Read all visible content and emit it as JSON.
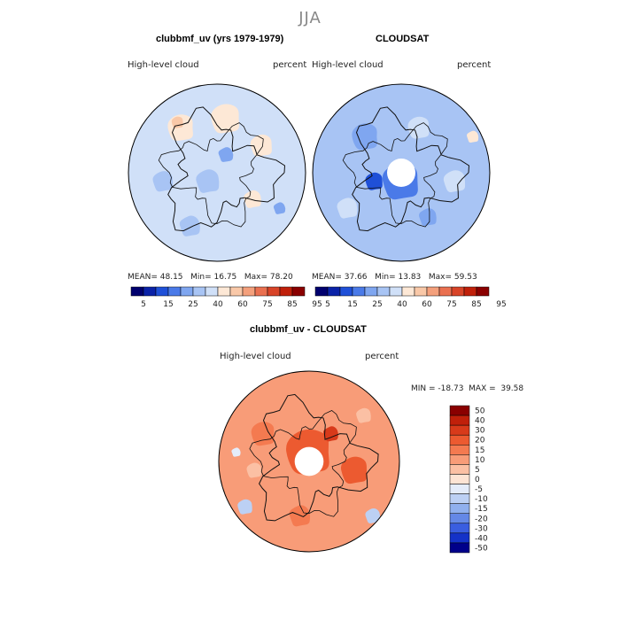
{
  "main_title": "JJA",
  "panels": [
    {
      "title": "clubbmf_uv (yrs 1979-1979)",
      "left_label": "High-level cloud",
      "right_label": "percent",
      "stats": {
        "mean_label": "MEAN=",
        "mean": "48.15",
        "min_label": "Min=",
        "min": "16.75",
        "max_label": "Max=",
        "max": "78.20"
      }
    },
    {
      "title": "CLOUDSAT",
      "left_label": "High-level cloud",
      "right_label": "percent",
      "stats": {
        "mean_label": "MEAN=",
        "mean": "37.66",
        "min_label": "Min=",
        "min": "13.83",
        "max_label": "Max=",
        "max": "59.53"
      }
    },
    {
      "title": "clubbmf_uv - CLOUDSAT",
      "left_label": "High-level cloud",
      "right_label": "percent",
      "stats_line": "MIN = -18.73  MAX =  39.58"
    }
  ],
  "chart_data": [
    {
      "type": "heatmap",
      "projection": "north-polar-stereographic",
      "title": "clubbmf_uv (yrs 1979-1979)",
      "variable": "High-level cloud",
      "units": "percent",
      "season": "JJA",
      "mean": 48.15,
      "min": 16.75,
      "max": 78.2,
      "colorbar_ticks": [
        "5",
        "15",
        "25",
        "40",
        "60",
        "75",
        "85",
        "95"
      ],
      "colorbar_colors": [
        "#00006e",
        "#0a22a8",
        "#1f50d8",
        "#4a7ae8",
        "#7fa6f0",
        "#a8c4f4",
        "#d0e0f8",
        "#fde8d6",
        "#f9c8a8",
        "#f4a07c",
        "#ea7050",
        "#d84428",
        "#c0200a",
        "#8a0000"
      ]
    },
    {
      "type": "heatmap",
      "projection": "north-polar-stereographic",
      "title": "CLOUDSAT",
      "variable": "High-level cloud",
      "units": "percent",
      "season": "JJA",
      "mean": 37.66,
      "min": 13.83,
      "max": 59.53,
      "colorbar_ticks": [
        "5",
        "15",
        "25",
        "40",
        "60",
        "75",
        "85",
        "95"
      ],
      "colorbar_colors": [
        "#00006e",
        "#0a22a8",
        "#1f50d8",
        "#4a7ae8",
        "#7fa6f0",
        "#a8c4f4",
        "#d0e0f8",
        "#fde8d6",
        "#f9c8a8",
        "#f4a07c",
        "#ea7050",
        "#d84428",
        "#c0200a",
        "#8a0000"
      ]
    },
    {
      "type": "heatmap",
      "projection": "north-polar-stereographic",
      "title": "clubbmf_uv - CLOUDSAT",
      "variable": "High-level cloud",
      "units": "percent",
      "season": "JJA",
      "min": -18.73,
      "max": 39.58,
      "colorbar_ticks": [
        "50",
        "40",
        "30",
        "20",
        "15",
        "10",
        "5",
        "0",
        "-5",
        "-10",
        "-15",
        "-20",
        "-30",
        "-40",
        "-50"
      ],
      "colorbar_colors": [
        "#8a0000",
        "#c0200a",
        "#d83a1a",
        "#ec5a30",
        "#f47a50",
        "#f89c78",
        "#fbc0a4",
        "#fde4d4",
        "#e4ecfa",
        "#bcd0f4",
        "#90b0ee",
        "#6488e6",
        "#3a5ee0",
        "#1432c8",
        "#00008a"
      ]
    }
  ]
}
